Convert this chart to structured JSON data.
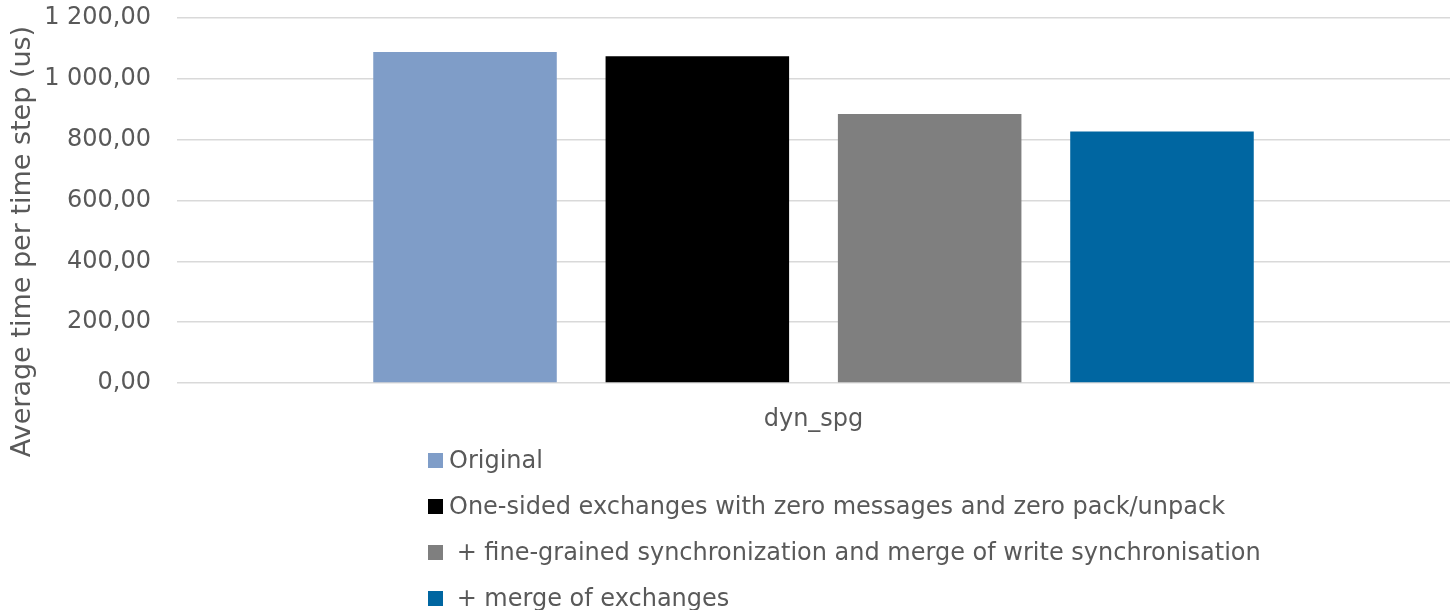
{
  "chart_data": {
    "type": "bar",
    "categories": [
      "dyn_spg"
    ],
    "ylabel": "Average time per time step (us)",
    "series": [
      {
        "name": "Original",
        "color": "#7f9dc8",
        "values": [
          1088
        ]
      },
      {
        "name": "One-sided exchanges with zero messages and zero pack/unpack",
        "color": "#000000",
        "values": [
          1074
        ]
      },
      {
        "name": " + fine-grained synchronization and merge of write synchronisation",
        "color": "#7f7f7f",
        "values": [
          884
        ]
      },
      {
        "name": " + merge of exchanges",
        "color": "#0066a1",
        "values": [
          827
        ]
      }
    ],
    "ylim": [
      0,
      1200
    ],
    "yticks": [
      {
        "value": 0,
        "label": "0,00"
      },
      {
        "value": 200,
        "label": "200,00"
      },
      {
        "value": 400,
        "label": "400,00"
      },
      {
        "value": 600,
        "label": "600,00"
      },
      {
        "value": 800,
        "label": "800,00"
      },
      {
        "value": 1000,
        "label": "1 000,00"
      },
      {
        "value": 1200,
        "label": "1 200,00"
      }
    ],
    "grid": "y",
    "legend": "bottom"
  }
}
